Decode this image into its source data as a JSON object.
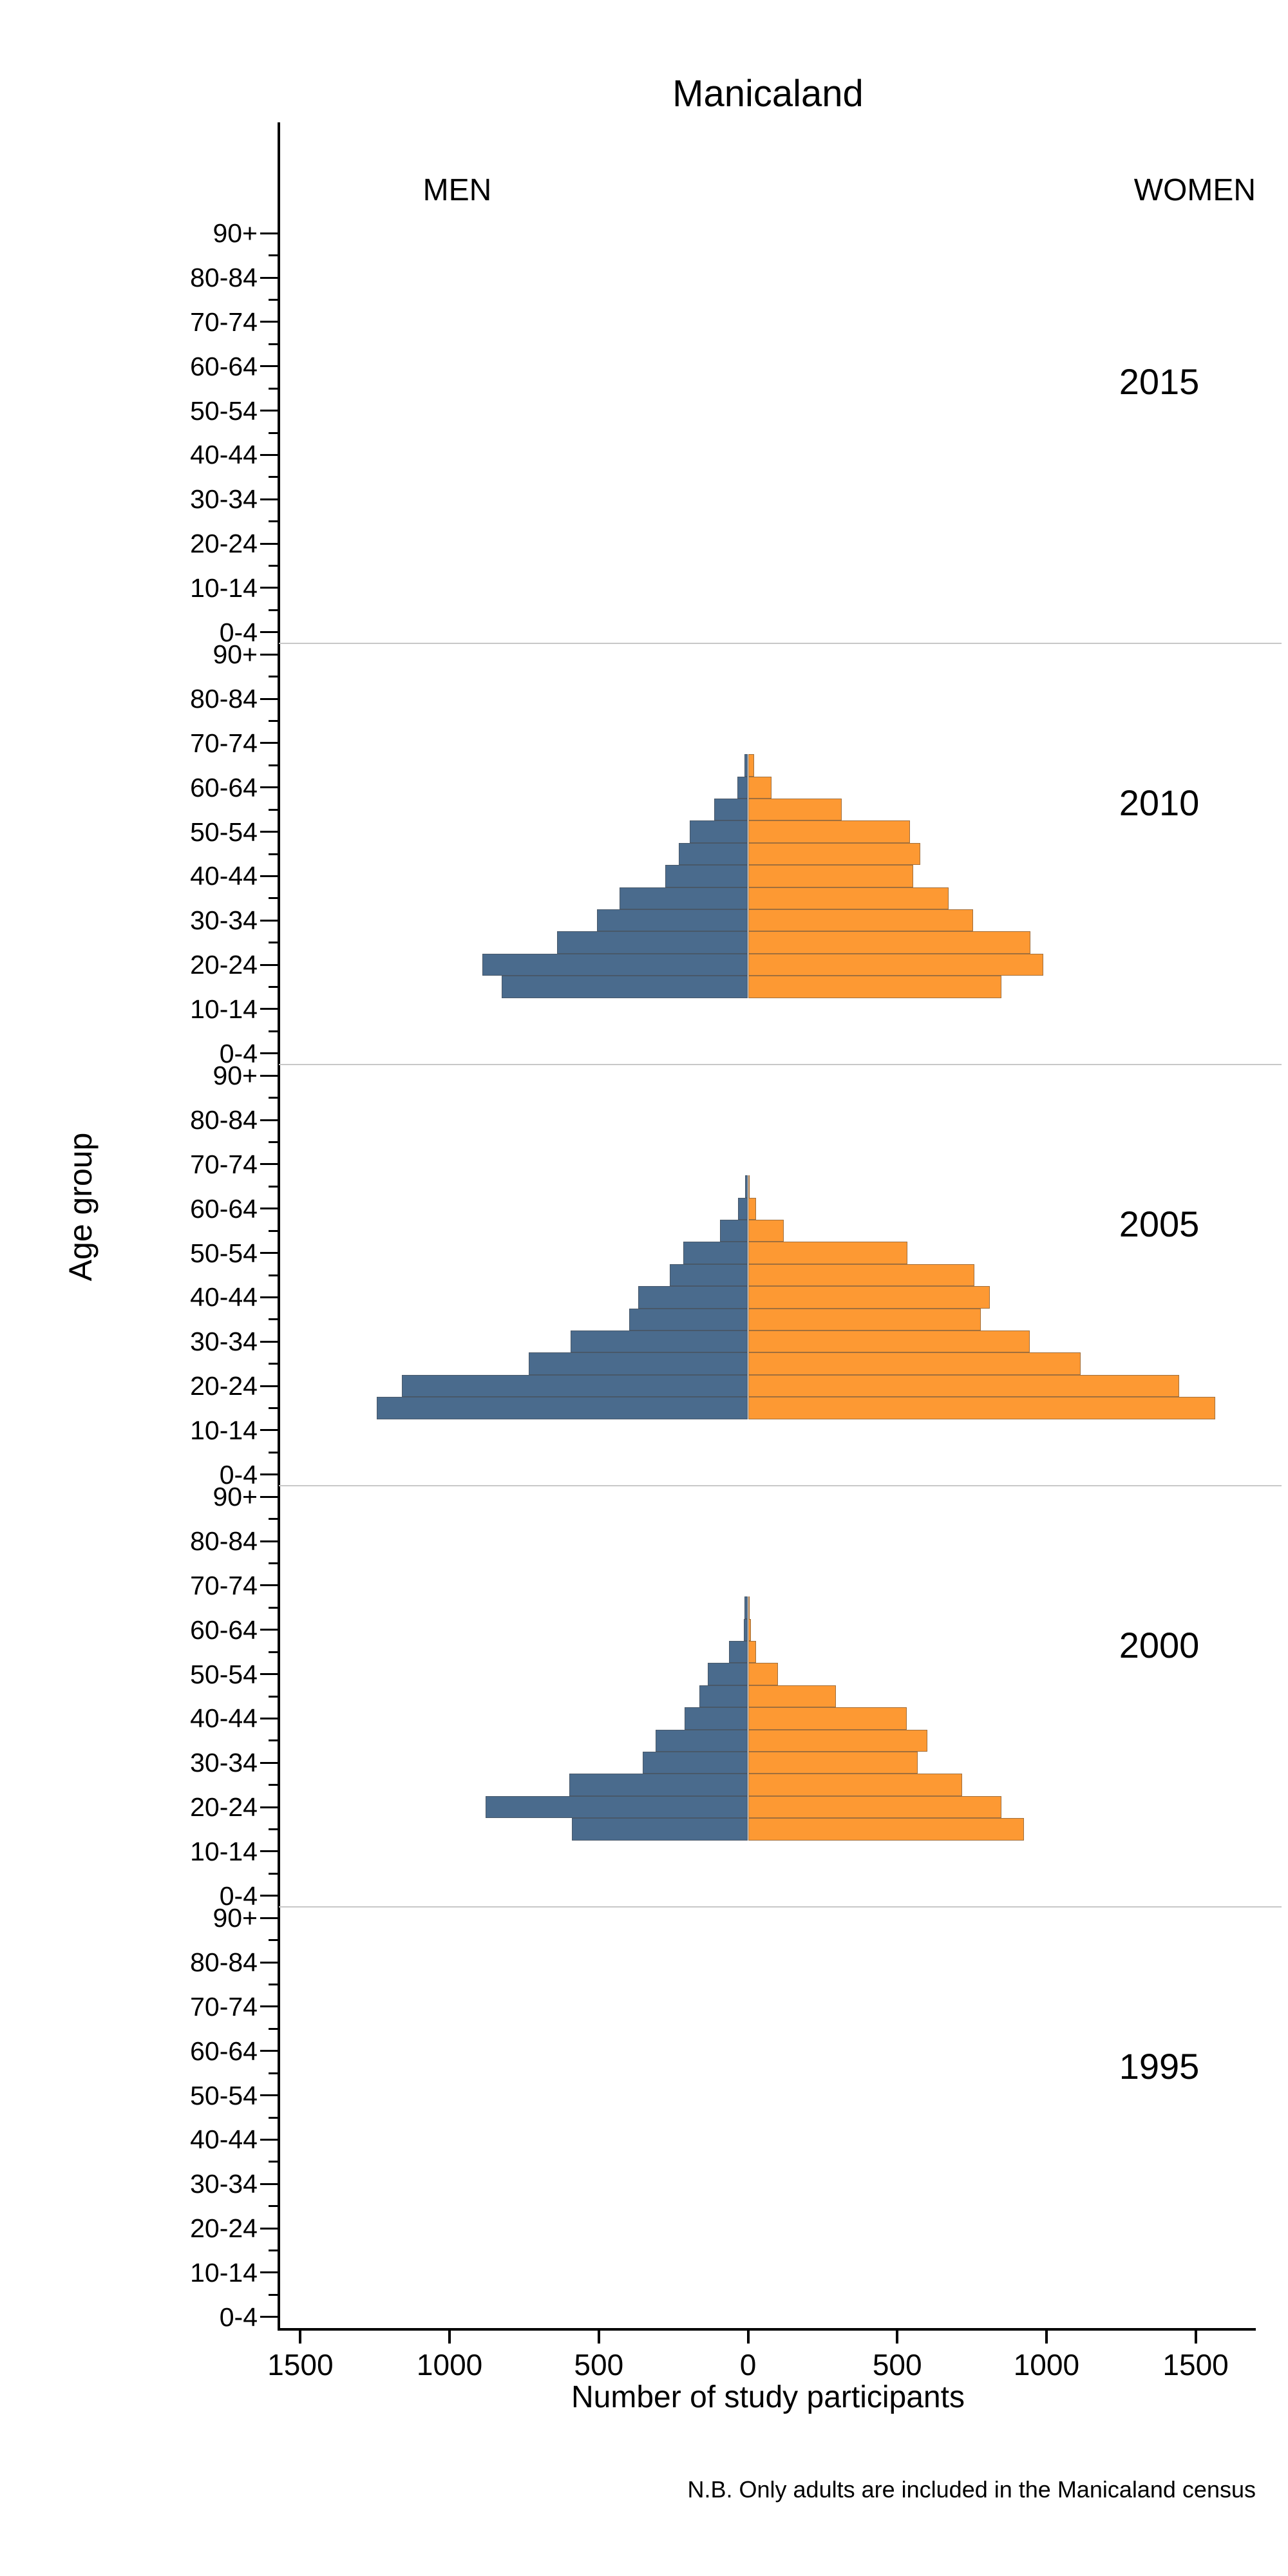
{
  "title": "Manicaland",
  "gender_labels": {
    "men": "MEN",
    "women": "WOMEN"
  },
  "ylabel": "Age group",
  "xlabel": "Number of study participants",
  "footnote": "N.B. Only adults are included in the Manicaland census",
  "colors": {
    "men_bar": "#4a6b8d",
    "women_bar": "#fd9933",
    "panel_separator": "#c8c8c8",
    "axis": "#000000",
    "background": "#ffffff"
  },
  "chart_data": {
    "type": "bar",
    "subtype": "population-pyramid-small-multiples",
    "title": "Manicaland",
    "xlabel": "Number of study participants",
    "ylabel": "Age group",
    "legend_position": "in-plot-top (MEN left, WOMEN right)",
    "grid": "off",
    "xlim": [
      -1600,
      1700
    ],
    "x_tick_values": [
      -1500,
      -1000,
      -500,
      0,
      500,
      1000,
      1500
    ],
    "x_tick_labels": [
      "1500",
      "1000",
      "500",
      "0",
      "500",
      "1000",
      "1500"
    ],
    "age_groups_top_to_bottom": [
      "90+",
      "85-89",
      "80-84",
      "75-79",
      "70-74",
      "65-69",
      "60-64",
      "55-59",
      "50-54",
      "45-49",
      "40-44",
      "35-39",
      "30-34",
      "25-29",
      "20-24",
      "15-19",
      "10-14",
      "5-9",
      "0-4"
    ],
    "labeled_age_ticks": [
      "90+",
      "80-84",
      "70-74",
      "60-64",
      "50-54",
      "40-44",
      "30-34",
      "20-24",
      "10-14",
      "0-4"
    ],
    "panels": [
      {
        "year": "2015",
        "men": {},
        "women": {}
      },
      {
        "year": "2010",
        "men": {
          "65-69": 12,
          "60-64": 36,
          "55-59": 113,
          "50-54": 195,
          "45-49": 231,
          "40-44": 277,
          "35-39": 430,
          "30-34": 505,
          "25-29": 640,
          "20-24": 890,
          "15-19": 825
        },
        "women": {
          "65-69": 20,
          "60-64": 79,
          "55-59": 313,
          "50-54": 542,
          "45-49": 578,
          "40-44": 554,
          "35-39": 673,
          "30-34": 754,
          "25-29": 946,
          "20-24": 990,
          "15-19": 850
        }
      },
      {
        "year": "2005",
        "men": {
          "65-69": 10,
          "60-64": 33,
          "55-59": 94,
          "50-54": 216,
          "45-49": 262,
          "40-44": 368,
          "35-39": 398,
          "30-34": 595,
          "25-29": 735,
          "20-24": 1160,
          "15-19": 1245
        },
        "women": {
          "65-69": 5,
          "60-64": 27,
          "55-59": 119,
          "50-54": 535,
          "45-49": 758,
          "40-44": 810,
          "35-39": 780,
          "30-34": 945,
          "25-29": 1115,
          "20-24": 1445,
          "15-19": 1565
        }
      },
      {
        "year": "2000",
        "men": {
          "65-69": 12,
          "60-64": 14,
          "55-59": 63,
          "50-54": 134,
          "45-49": 163,
          "40-44": 213,
          "35-39": 309,
          "30-34": 352,
          "25-29": 598,
          "20-24": 880,
          "15-19": 590
        },
        "women": {
          "65-69": 3,
          "60-64": 9,
          "55-59": 27,
          "50-54": 101,
          "45-49": 295,
          "40-44": 531,
          "35-39": 601,
          "30-34": 569,
          "25-29": 718,
          "20-24": 850,
          "15-19": 925
        }
      },
      {
        "year": "1995",
        "men": {},
        "women": {}
      }
    ]
  }
}
